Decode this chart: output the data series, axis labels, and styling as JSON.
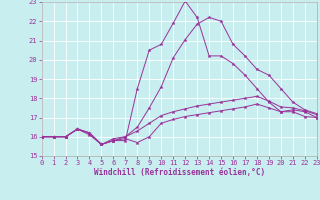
{
  "background_color": "#c8eef0",
  "grid_color": "#ffffff",
  "line_color": "#993399",
  "xlim": [
    0,
    23
  ],
  "ylim": [
    15,
    23
  ],
  "yticks": [
    15,
    16,
    17,
    18,
    19,
    20,
    21,
    22,
    23
  ],
  "xticks": [
    0,
    1,
    2,
    3,
    4,
    5,
    6,
    7,
    8,
    9,
    10,
    11,
    12,
    13,
    14,
    15,
    16,
    17,
    18,
    19,
    20,
    21,
    22,
    23
  ],
  "xlabel": "Windchill (Refroidissement éolien,°C)",
  "line1_x": [
    0,
    1,
    2,
    3,
    4,
    5,
    6,
    7,
    8,
    9,
    10,
    11,
    12,
    13,
    14,
    15,
    16,
    17,
    18,
    19,
    20,
    21,
    22,
    23
  ],
  "line1_y": [
    16.0,
    16.0,
    16.0,
    16.4,
    16.1,
    15.6,
    15.8,
    15.9,
    15.7,
    16.0,
    16.7,
    16.9,
    17.05,
    17.15,
    17.25,
    17.35,
    17.45,
    17.55,
    17.7,
    17.5,
    17.3,
    17.3,
    17.05,
    17.0
  ],
  "line2_x": [
    0,
    1,
    2,
    3,
    4,
    5,
    6,
    7,
    8,
    9,
    10,
    11,
    12,
    13,
    14,
    15,
    16,
    17,
    18,
    19,
    20,
    21,
    22,
    23
  ],
  "line2_y": [
    16.0,
    16.0,
    16.0,
    16.4,
    16.2,
    15.6,
    15.8,
    16.0,
    16.3,
    16.7,
    17.1,
    17.3,
    17.45,
    17.6,
    17.7,
    17.8,
    17.9,
    18.0,
    18.1,
    17.85,
    17.55,
    17.5,
    17.35,
    17.15
  ],
  "line3_x": [
    0,
    1,
    2,
    3,
    4,
    5,
    6,
    7,
    8,
    9,
    10,
    11,
    12,
    13,
    14,
    15,
    16,
    17,
    18,
    19,
    20,
    21,
    22,
    23
  ],
  "line3_y": [
    16.0,
    16.0,
    16.0,
    16.4,
    16.2,
    15.6,
    15.9,
    16.0,
    16.5,
    17.5,
    18.6,
    20.1,
    21.05,
    21.85,
    22.2,
    22.0,
    20.8,
    20.2,
    19.5,
    19.2,
    18.5,
    17.8,
    17.4,
    17.2
  ],
  "line4_x": [
    0,
    1,
    2,
    3,
    4,
    5,
    6,
    7,
    8,
    9,
    10,
    11,
    12,
    13,
    14,
    15,
    16,
    17,
    18,
    19,
    20,
    21,
    22,
    23
  ],
  "line4_y": [
    16.0,
    16.0,
    16.0,
    16.4,
    16.2,
    15.6,
    15.8,
    15.8,
    18.5,
    20.5,
    20.8,
    21.9,
    23.05,
    22.2,
    20.2,
    20.2,
    19.8,
    19.2,
    18.5,
    17.8,
    17.3,
    17.4,
    17.3,
    17.0
  ]
}
